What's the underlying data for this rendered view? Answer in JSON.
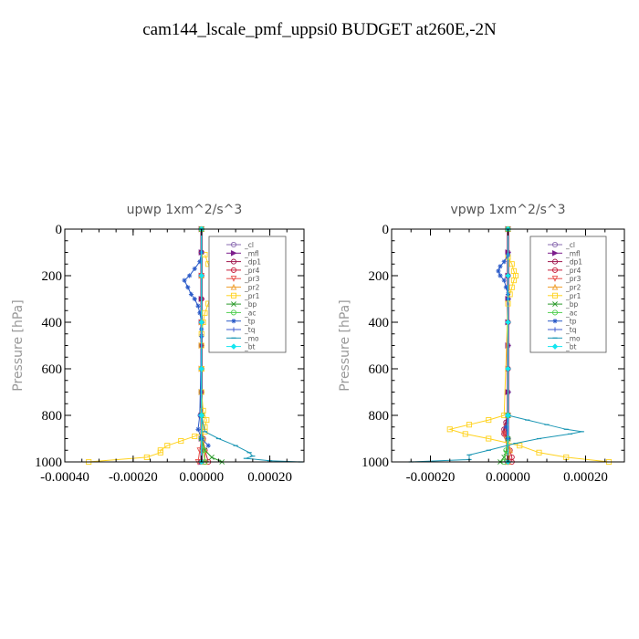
{
  "page": {
    "title": "cam144_lscale_pmf_uppsi0  BUDGET at260E,-2N"
  },
  "chart_data": [
    {
      "type": "line",
      "title": "upwp   1xm^2/s^3",
      "ylabel": "Pressure [hPa]",
      "xlabel": "",
      "xlim": [
        -0.0004,
        0.0003
      ],
      "ylim": [
        1000,
        0
      ],
      "x_ticks": [
        "-0.00040",
        "-0.00020",
        "0.00000",
        "0.00020"
      ],
      "x_tick_values": [
        -0.0004,
        -0.0002,
        0.0,
        0.0002
      ],
      "y_ticks": [
        "0",
        "200",
        "400",
        "600",
        "800",
        "1000"
      ],
      "y_tick_values": [
        0,
        200,
        400,
        600,
        800,
        1000
      ],
      "legend": {
        "position": "top-right"
      },
      "series": [
        {
          "name": "_cl",
          "color": "#8a6bb0",
          "pressure": [
            0,
            100,
            200,
            300,
            400,
            500,
            600,
            700,
            800,
            900,
            1000
          ],
          "values": [
            0,
            0,
            0,
            0,
            0,
            0,
            0,
            0,
            0,
            0,
            0
          ]
        },
        {
          "name": "_mfl",
          "color": "#7d1e8c",
          "pressure": [
            0,
            100,
            200,
            300,
            400,
            500,
            600,
            700,
            800,
            900,
            1000
          ],
          "values": [
            0,
            0,
            0,
            0,
            0,
            0,
            0,
            0,
            0,
            0,
            0
          ]
        },
        {
          "name": "_dp1",
          "color": "#a0174e",
          "pressure": [
            0,
            100,
            200,
            300,
            400,
            500,
            600,
            700,
            800,
            900,
            1000
          ],
          "values": [
            0,
            0,
            0,
            0,
            0,
            0,
            0,
            0,
            0,
            0,
            0
          ]
        },
        {
          "name": "_pr4",
          "color": "#c81e3c",
          "pressure": [
            0,
            200,
            400,
            600,
            800,
            900,
            950,
            1000
          ],
          "values": [
            0,
            0,
            0,
            0,
            0,
            5e-06,
            1e-05,
            2e-05
          ]
        },
        {
          "name": "_pr3",
          "color": "#e8504a",
          "pressure": [
            0,
            200,
            400,
            600,
            800,
            900,
            950,
            1000
          ],
          "values": [
            0,
            0,
            0,
            0,
            0,
            0,
            -5e-06,
            -1e-05
          ]
        },
        {
          "name": "_pr2",
          "color": "#f0a030",
          "pressure": [
            0,
            200,
            400,
            600,
            800,
            900,
            950,
            1000
          ],
          "values": [
            0,
            0,
            0,
            0,
            0,
            5e-06,
            1e-05,
            1e-05
          ]
        },
        {
          "name": "_pr1",
          "color": "#ffd21e",
          "pressure": [
            110,
            150,
            180,
            210,
            240,
            280,
            320,
            360,
            400,
            450,
            500,
            600,
            700,
            780,
            820,
            850,
            870,
            890,
            910,
            930,
            950,
            960,
            980,
            1000
          ],
          "values": [
            1e-05,
            2e-05,
            3e-05,
            4.5e-05,
            4e-05,
            3e-05,
            2e-05,
            1e-05,
            5e-06,
            0,
            0,
            0,
            0,
            5e-06,
            1.5e-05,
            1e-05,
            1e-05,
            -2e-05,
            -6e-05,
            -0.0001,
            -0.00012,
            -0.00012,
            -0.00016,
            -0.00033
          ]
        },
        {
          "name": "_bp",
          "color": "#2a9a2a",
          "pressure": [
            0,
            800,
            900,
            950,
            980,
            1000
          ],
          "values": [
            0,
            0,
            0,
            1e-05,
            3e-05,
            6e-05
          ]
        },
        {
          "name": "_ac",
          "color": "#50d050",
          "pressure": [
            0,
            800,
            900,
            950,
            1000
          ],
          "values": [
            0,
            0,
            0,
            5e-06,
            1e-05
          ]
        },
        {
          "name": "_tp",
          "color": "#2a5ac8",
          "pressure": [
            100,
            140,
            170,
            200,
            220,
            250,
            280,
            300,
            330,
            360,
            400,
            430,
            460,
            800,
            860,
            900,
            930
          ],
          "values": [
            0,
            -5e-06,
            -2e-05,
            -3.5e-05,
            -5e-05,
            -4e-05,
            -3e-05,
            -2e-05,
            -1e-05,
            -5e-06,
            0,
            0,
            0,
            -5e-06,
            -1e-05,
            0,
            2e-05
          ]
        },
        {
          "name": "_tq",
          "color": "#3c5ad2",
          "pressure": [
            0,
            200,
            400,
            600,
            800,
            1000
          ],
          "values": [
            0,
            0,
            0,
            0,
            0,
            0
          ]
        },
        {
          "name": "_mo",
          "color": "#1a96b4",
          "pressure": [
            800,
            870,
            900,
            930,
            960,
            975,
            985,
            995,
            1000
          ],
          "values": [
            0,
            1e-05,
            5e-05,
            0.0001,
            0.00014,
            0.00015,
            0.00013,
            0.0002,
            0.00029
          ]
        },
        {
          "name": "_bt",
          "color": "#14e6f0",
          "pressure": [
            0,
            200,
            400,
            600,
            800,
            1000
          ],
          "values": [
            0,
            0,
            0,
            0,
            0,
            0
          ]
        }
      ]
    },
    {
      "type": "line",
      "title": "vpwp   1xm^2/s^3",
      "ylabel": "Pressure [hPa]",
      "xlabel": "",
      "xlim": [
        -0.0003,
        0.0003
      ],
      "ylim": [
        1000,
        0
      ],
      "x_ticks": [
        "-0.00020",
        "0.00000",
        "0.00020"
      ],
      "x_tick_values": [
        -0.0002,
        0.0,
        0.0002
      ],
      "y_ticks": [
        "0",
        "200",
        "400",
        "600",
        "800",
        "1000"
      ],
      "y_tick_values": [
        0,
        200,
        400,
        600,
        800,
        1000
      ],
      "legend": {
        "position": "top-right"
      },
      "series": [
        {
          "name": "_cl",
          "color": "#8a6bb0",
          "pressure": [
            0,
            100,
            200,
            300,
            400,
            500,
            600,
            700,
            800,
            900,
            1000
          ],
          "values": [
            0,
            0,
            0,
            0,
            0,
            0,
            0,
            0,
            0,
            0,
            0
          ]
        },
        {
          "name": "_mfl",
          "color": "#7d1e8c",
          "pressure": [
            0,
            100,
            200,
            300,
            400,
            500,
            600,
            700,
            800,
            900,
            1000
          ],
          "values": [
            0,
            0,
            0,
            0,
            0,
            0,
            0,
            0,
            0,
            0,
            0
          ]
        },
        {
          "name": "_dp1",
          "color": "#a0174e",
          "pressure": [
            0,
            200,
            400,
            600,
            800,
            830,
            860,
            880,
            900,
            1000
          ],
          "values": [
            0,
            0,
            0,
            0,
            0,
            -5e-06,
            -1e-05,
            -1e-05,
            0,
            0
          ]
        },
        {
          "name": "_pr4",
          "color": "#c81e3c",
          "pressure": [
            0,
            800,
            900,
            950,
            980,
            1000
          ],
          "values": [
            0,
            0,
            0,
            5e-06,
            1e-05,
            1e-05
          ]
        },
        {
          "name": "_pr3",
          "color": "#e8504a",
          "pressure": [
            0,
            800,
            850,
            880,
            900,
            1000
          ],
          "values": [
            0,
            0,
            -5e-06,
            -1e-05,
            -5e-06,
            0
          ]
        },
        {
          "name": "_pr2",
          "color": "#f0a030",
          "pressure": [
            0,
            800,
            900,
            950,
            1000
          ],
          "values": [
            0,
            0,
            0,
            5e-06,
            0
          ]
        },
        {
          "name": "_pr1",
          "color": "#ffd21e",
          "pressure": [
            120,
            150,
            180,
            200,
            220,
            250,
            280,
            320,
            800,
            820,
            840,
            860,
            880,
            900,
            930,
            960,
            980,
            1000
          ],
          "values": [
            0,
            1e-05,
            1.5e-05,
            2e-05,
            1.5e-05,
            1e-05,
            5e-06,
            0,
            -1e-05,
            -5e-05,
            -0.0001,
            -0.00015,
            -0.00011,
            -5e-05,
            3e-05,
            8e-05,
            0.00015,
            0.00026
          ]
        },
        {
          "name": "_bp",
          "color": "#2a9a2a",
          "pressure": [
            0,
            800,
            900,
            960,
            980,
            1000
          ],
          "values": [
            0,
            0,
            0,
            -5e-06,
            -1e-05,
            -2e-05
          ]
        },
        {
          "name": "_ac",
          "color": "#50d050",
          "pressure": [
            0,
            800,
            900,
            950,
            1000
          ],
          "values": [
            0,
            0,
            0,
            -5e-06,
            -1e-05
          ]
        },
        {
          "name": "_tp",
          "color": "#2a5ac8",
          "pressure": [
            110,
            140,
            160,
            180,
            200,
            220,
            250,
            280,
            300,
            800,
            850,
            900
          ],
          "values": [
            0,
            -1e-05,
            -2e-05,
            -2.5e-05,
            -2e-05,
            -1e-05,
            -5e-06,
            0,
            0,
            0,
            -5e-06,
            0
          ]
        },
        {
          "name": "_tq",
          "color": "#3c5ad2",
          "pressure": [
            0,
            200,
            400,
            600,
            800,
            1000
          ],
          "values": [
            0,
            0,
            0,
            0,
            0,
            0
          ]
        },
        {
          "name": "_mo",
          "color": "#1a96b4",
          "pressure": [
            800,
            820,
            840,
            860,
            870,
            880,
            900,
            920,
            950,
            970,
            990,
            1000
          ],
          "values": [
            0,
            5e-05,
            0.0001,
            0.00015,
            0.00019,
            0.00016,
            8e-05,
            2e-05,
            -5e-05,
            -0.0001,
            -0.0001,
            -0.00025
          ]
        },
        {
          "name": "_bt",
          "color": "#14e6f0",
          "pressure": [
            0,
            200,
            400,
            600,
            800,
            1000
          ],
          "values": [
            0,
            0,
            0,
            0,
            0,
            0
          ]
        }
      ]
    }
  ]
}
